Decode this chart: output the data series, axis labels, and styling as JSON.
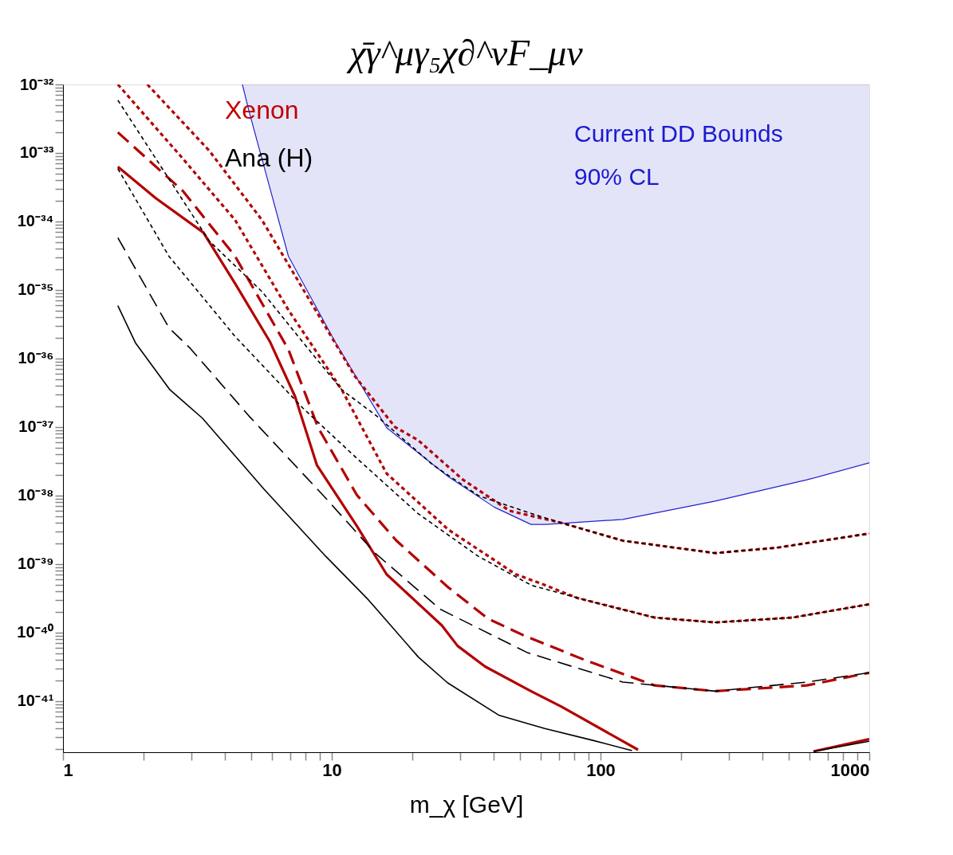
{
  "chart_data": {
    "type": "line",
    "title": "χ̄γ^μγ₅χ∂^νF_μν",
    "xlabel": "m_χ [GeV]",
    "log": "xy",
    "grid": false,
    "xlim": [
      1,
      1000
    ],
    "ylim": [
      1.8e-42,
      1e-32
    ],
    "xticks": [
      1,
      {
        "value": 2,
        "label": null
      },
      {
        "value": 3,
        "label": null
      },
      {
        "value": 4,
        "label": null
      },
      {
        "value": 5,
        "label": null
      },
      {
        "value": 6,
        "label": null
      },
      {
        "value": 7,
        "label": null
      },
      {
        "value": 8,
        "label": null
      },
      {
        "value": 9,
        "label": null
      },
      10,
      {
        "value": 20,
        "label": null
      },
      {
        "value": 30,
        "label": null
      },
      {
        "value": 40,
        "label": null
      },
      {
        "value": 50,
        "label": null
      },
      {
        "value": 60,
        "label": null
      },
      {
        "value": 70,
        "label": null
      },
      {
        "value": 80,
        "label": null
      },
      {
        "value": 90,
        "label": null
      },
      100,
      {
        "value": 200,
        "label": null
      },
      {
        "value": 300,
        "label": null
      },
      {
        "value": 400,
        "label": null
      },
      {
        "value": 500,
        "label": null
      },
      {
        "value": 600,
        "label": null
      },
      {
        "value": 700,
        "label": null
      },
      {
        "value": 800,
        "label": null
      },
      {
        "value": 900,
        "label": null
      },
      1000
    ],
    "yticks": [
      {
        "value": 1e-32,
        "label": "10⁻³²"
      },
      {
        "value": 1e-33,
        "label": "10⁻³³"
      },
      {
        "value": 1e-34,
        "label": "10⁻³⁴"
      },
      {
        "value": 1e-35,
        "label": "10⁻³⁵"
      },
      {
        "value": 1e-36,
        "label": "10⁻³⁶"
      },
      {
        "value": 1e-37,
        "label": "10⁻³⁷"
      },
      {
        "value": 1e-38,
        "label": "10⁻³⁸"
      },
      {
        "value": 1e-39,
        "label": "10⁻³⁹"
      },
      {
        "value": 1e-40,
        "label": "10⁻⁴⁰"
      },
      {
        "value": 1e-41,
        "label": "10⁻⁴¹"
      },
      {
        "value": 2e-33,
        "label": null
      },
      {
        "value": 3e-33,
        "label": null
      },
      {
        "value": 4e-33,
        "label": null
      },
      {
        "value": 5e-33,
        "label": null
      },
      {
        "value": 6e-33,
        "label": null
      },
      {
        "value": 7e-33,
        "label": null
      },
      {
        "value": 8e-33,
        "label": null
      },
      {
        "value": 9e-33,
        "label": null
      },
      {
        "value": 2e-34,
        "label": null
      },
      {
        "value": 3e-34,
        "label": null
      },
      {
        "value": 4e-34,
        "label": null
      },
      {
        "value": 5e-34,
        "label": null
      },
      {
        "value": 6e-34,
        "label": null
      },
      {
        "value": 7e-34,
        "label": null
      },
      {
        "value": 8e-34,
        "label": null
      },
      {
        "value": 9e-34,
        "label": null
      },
      {
        "value": 2e-35,
        "label": null
      },
      {
        "value": 3e-35,
        "label": null
      },
      {
        "value": 4e-35,
        "label": null
      },
      {
        "value": 5e-35,
        "label": null
      },
      {
        "value": 6e-35,
        "label": null
      },
      {
        "value": 7e-35,
        "label": null
      },
      {
        "value": 8e-35,
        "label": null
      },
      {
        "value": 9e-35,
        "label": null
      },
      {
        "value": 2e-36,
        "label": null
      },
      {
        "value": 3e-36,
        "label": null
      },
      {
        "value": 4e-36,
        "label": null
      },
      {
        "value": 5e-36,
        "label": null
      },
      {
        "value": 6e-36,
        "label": null
      },
      {
        "value": 7e-36,
        "label": null
      },
      {
        "value": 8e-36,
        "label": null
      },
      {
        "value": 9e-36,
        "label": null
      },
      {
        "value": 2e-37,
        "label": null
      },
      {
        "value": 3e-37,
        "label": null
      },
      {
        "value": 4e-37,
        "label": null
      },
      {
        "value": 5e-37,
        "label": null
      },
      {
        "value": 6e-37,
        "label": null
      },
      {
        "value": 7e-37,
        "label": null
      },
      {
        "value": 8e-37,
        "label": null
      },
      {
        "value": 9e-37,
        "label": null
      },
      {
        "value": 2e-38,
        "label": null
      },
      {
        "value": 3e-38,
        "label": null
      },
      {
        "value": 4e-38,
        "label": null
      },
      {
        "value": 5e-38,
        "label": null
      },
      {
        "value": 6e-38,
        "label": null
      },
      {
        "value": 7e-38,
        "label": null
      },
      {
        "value": 8e-38,
        "label": null
      },
      {
        "value": 9e-38,
        "label": null
      },
      {
        "value": 2e-39,
        "label": null
      },
      {
        "value": 3e-39,
        "label": null
      },
      {
        "value": 4e-39,
        "label": null
      },
      {
        "value": 5e-39,
        "label": null
      },
      {
        "value": 6e-39,
        "label": null
      },
      {
        "value": 7e-39,
        "label": null
      },
      {
        "value": 8e-39,
        "label": null
      },
      {
        "value": 9e-39,
        "label": null
      },
      {
        "value": 2e-40,
        "label": null
      },
      {
        "value": 3e-40,
        "label": null
      },
      {
        "value": 4e-40,
        "label": null
      },
      {
        "value": 5e-40,
        "label": null
      },
      {
        "value": 6e-40,
        "label": null
      },
      {
        "value": 7e-40,
        "label": null
      },
      {
        "value": 8e-40,
        "label": null
      },
      {
        "value": 9e-40,
        "label": null
      },
      {
        "value": 2e-41,
        "label": null
      },
      {
        "value": 3e-41,
        "label": null
      },
      {
        "value": 4e-41,
        "label": null
      },
      {
        "value": 5e-41,
        "label": null
      },
      {
        "value": 6e-41,
        "label": null
      },
      {
        "value": 7e-41,
        "label": null
      },
      {
        "value": 8e-41,
        "label": null
      },
      {
        "value": 9e-41,
        "label": null
      },
      {
        "value": 2e-42,
        "label": null
      },
      {
        "value": 3e-42,
        "label": null
      },
      {
        "value": 4e-42,
        "label": null
      },
      {
        "value": 5e-42,
        "label": null
      },
      {
        "value": 6e-42,
        "label": null
      },
      {
        "value": 7e-42,
        "label": null
      },
      {
        "value": 8e-42,
        "label": null
      },
      {
        "value": 9e-42,
        "label": null
      }
    ],
    "series": [
      {
        "type": "line",
        "color": "#2222cc",
        "line_style": "solid",
        "x": [
          4.65,
          4.92,
          6.9,
          10.3,
          16.0,
          27.1,
          40.2,
          55.1,
          62.7,
          121,
          267,
          586,
          1000
        ],
        "values": [
          1e-32,
          4.1e-33,
          3.1e-35,
          1.74e-36,
          9.8e-38,
          1.9e-38,
          6.8e-39,
          3.8e-39,
          3.8e-39,
          4.5e-39,
          8.3e-39,
          1.7e-38,
          3e-38
        ],
        "lower": [
          1e-32,
          4.1e-33,
          3.1e-35,
          1.74e-36,
          9.8e-38,
          1.9e-38,
          6.8e-39,
          3.8e-39,
          3.8e-39,
          4.5e-39,
          8.3e-39,
          1.7e-38,
          3e-38
        ],
        "upper": [
          1e-32,
          1e-32,
          1e-32,
          1e-32,
          1e-32,
          1e-32,
          1e-32,
          1e-32,
          1e-32,
          1e-32,
          1e-32,
          1e-32,
          1e-32
        ]
      },
      {
        "color": "#b30000",
        "line_style": "solid",
        "x": [
          1.6,
          2.21,
          3.33,
          4.37,
          5.9,
          7.3,
          8.8,
          12.4,
          16.0,
          25.7,
          29.4,
          37.2,
          55.1,
          71.6,
          138,
          null,
          620,
          1000
        ],
        "values": [
          6.3e-34,
          2.2e-34,
          6.9e-35,
          1.24e-35,
          1.74e-36,
          2.8e-37,
          2.8e-38,
          3.6e-39,
          7.1e-40,
          1.27e-40,
          6.4e-41,
          3.2e-41,
          1.4e-41,
          8.3e-42,
          1.95e-42,
          null,
          1.85e-42,
          2.8e-42
        ]
      },
      {
        "color": "#b30000",
        "line_style": "dashed",
        "x": [
          1.6,
          2.79,
          4.37,
          6.9,
          8.9,
          12.4,
          17.4,
          27.1,
          38.1,
          52.2,
          88.7,
          159,
          267,
          586,
          1000
        ],
        "values": [
          2e-33,
          2.8e-34,
          3.1e-35,
          1.35e-36,
          9.8e-38,
          1.02e-38,
          2.2e-39,
          4.6e-40,
          1.6e-40,
          9e-41,
          3.9e-41,
          1.7e-41,
          1.4e-41,
          1.7e-41,
          2.6e-41
        ]
      },
      {
        "color": "#b30000",
        "line_style": "dotted",
        "x": [
          1.6,
          2.79,
          4.37,
          6.9,
          10.9,
          16.0,
          27.1,
          48.4,
          61.6,
          82.1,
          159,
          267,
          518,
          1000
        ],
        "values": [
          1e-32,
          8.3e-34,
          1.05e-34,
          5.1e-36,
          3.5e-37,
          2.1e-38,
          3.2e-39,
          7.1e-40,
          5e-40,
          3.2e-40,
          1.66e-40,
          1.41e-40,
          1.66e-40,
          2.6e-40
        ]
      },
      {
        "color": "#b30000",
        "line_style": "dotted",
        "x": [
          2.06,
          3.5,
          5.5,
          8.7,
          12.2,
          17.2,
          20.9,
          30.8,
          45.9,
          71.6,
          121,
          267,
          455,
          1000
        ],
        "values": [
          1e-32,
          1.08e-33,
          1.05e-34,
          5.1e-36,
          5.5e-37,
          1e-37,
          6.5e-38,
          1.7e-38,
          6e-39,
          4e-39,
          2.2e-39,
          1.45e-39,
          1.74e-39,
          2.8e-39
        ]
      },
      {
        "color": "#000000",
        "line_style": "solid",
        "x": [
          1.6,
          1.86,
          2.5,
          3.3,
          5.6,
          9.5,
          13.7,
          21,
          27,
          42,
          62,
          93,
          131,
          null,
          620,
          1000
        ],
        "values": [
          5.9e-36,
          1.7e-36,
          3.5e-37,
          1.35e-37,
          1.24e-38,
          1.3e-39,
          3e-40,
          4.4e-41,
          1.85e-41,
          6.2e-42,
          4e-42,
          2.7e-42,
          1.9e-42,
          null,
          1.85e-42,
          2.6e-42
        ]
      },
      {
        "color": "#000000",
        "line_style": "dashed",
        "x": [
          1.6,
          2.48,
          2.98,
          4.92,
          9.47,
          14.5,
          25.3,
          53.5,
          121,
          267,
          586,
          1000
        ],
        "values": [
          5.8e-35,
          2.8e-36,
          1.4e-36,
          1.45e-37,
          9.3e-39,
          1.45e-39,
          2.2e-40,
          5.1e-41,
          1.9e-41,
          1.4e-41,
          1.9e-41,
          2.6e-41
        ]
      },
      {
        "color": "#000000",
        "line_style": "dotted",
        "x": [
          1.6,
          2.48,
          4.37,
          7.8,
          12.4,
          20.9,
          35.1,
          55.4,
          93.6,
          159,
          267,
          518,
          1000
        ],
        "values": [
          5.9e-34,
          3.1e-35,
          2.1e-36,
          1.9e-37,
          3.5e-38,
          5.5e-39,
          1.3e-39,
          4.9e-40,
          2.8e-40,
          1.66e-40,
          1.41e-40,
          1.66e-40,
          2.6e-40
        ]
      },
      {
        "color": "#000000",
        "line_style": "dotted",
        "x": [
          1.6,
          3.5,
          5.5,
          7.8,
          10.9,
          14.7,
          23.8,
          35.1,
          55.1,
          71.6,
          121,
          267,
          455,
          1000
        ],
        "values": [
          5.9e-33,
          5.2e-35,
          9.5e-36,
          1.74e-36,
          3.5e-37,
          1.45e-37,
          2.8e-38,
          1e-38,
          5.5e-39,
          4e-39,
          2.2e-39,
          1.45e-39,
          1.74e-39,
          2.8e-39
        ]
      }
    ],
    "annotations": [
      "Xenon",
      "Ana (H)",
      "Current DD Bounds",
      "90% CL"
    ]
  }
}
